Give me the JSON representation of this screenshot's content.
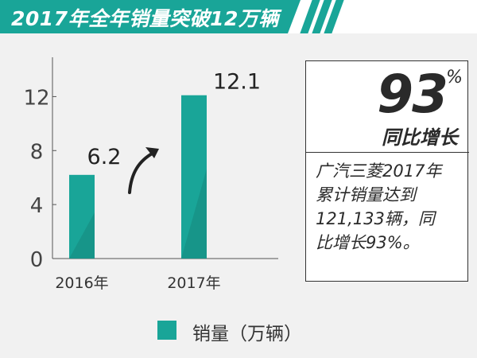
{
  "banner": {
    "title": "2017年全年销量突破12万辆"
  },
  "highlight": {
    "percent_value": "93",
    "percent_sign": "%",
    "label": "同比增长",
    "description_lines": [
      "广汽三菱2017年",
      "累计销量达到",
      "121,133辆，同",
      "比增长93%。"
    ]
  },
  "legend": {
    "label": "销量（万辆）"
  },
  "colors": {
    "bar": "#19a598",
    "bar_dark": "#15887d",
    "banner": "#19a598"
  },
  "chart_data": {
    "type": "bar",
    "categories": [
      "2016年",
      "2017年"
    ],
    "series": [
      {
        "name": "销量（万辆）",
        "values": [
          6.2,
          12.1
        ]
      }
    ],
    "data_labels": [
      "6.2",
      "12.1"
    ],
    "y_ticks": [
      "0",
      "4",
      "8",
      "12"
    ],
    "ylim": [
      0,
      14.5
    ],
    "annotation": "arrow-up-right",
    "grid": false,
    "legend_position": "bottom"
  }
}
